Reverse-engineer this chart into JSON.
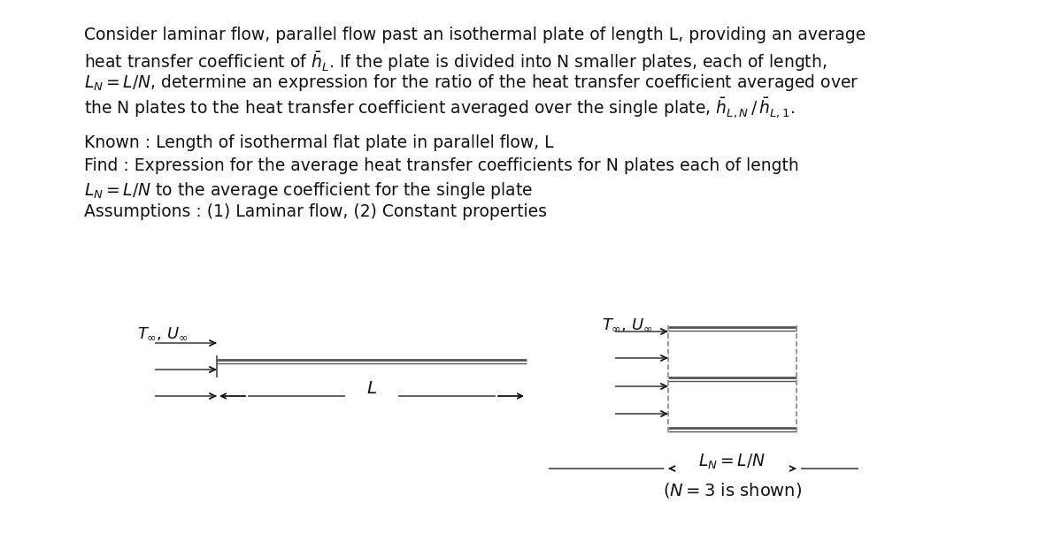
{
  "bg_color": "#ffffff",
  "text_color": "#1a1a1a",
  "line1": "Consider laminar flow, parallel flow past an isothermal plate of length L, providing an average",
  "line2": "heat transfer coefficient of $\\bar{h}_L$. If the plate is divided into N smaller plates, each of length,",
  "line3": "$L_N = L/N$, determine an expression for the ratio of the heat transfer coefficient averaged over",
  "line4": "the N plates to the heat transfer coefficient averaged over the single plate, $\\bar{h}_{L,N}\\,/\\,\\bar{h}_{L,1}$.",
  "line5": "Known : Length of isothermal flat plate in parallel flow, L",
  "line6": "Find : Expression for the average heat transfer coefficients for N plates each of length",
  "line7": "$L_N = L/N$ to the average coefficient for the single plate",
  "line8": "Assumptions : (1) Laminar flow, (2) Constant properties",
  "font_size": 13.5,
  "gray": "#555555",
  "dark": "#111111",
  "lgray": "#888888"
}
